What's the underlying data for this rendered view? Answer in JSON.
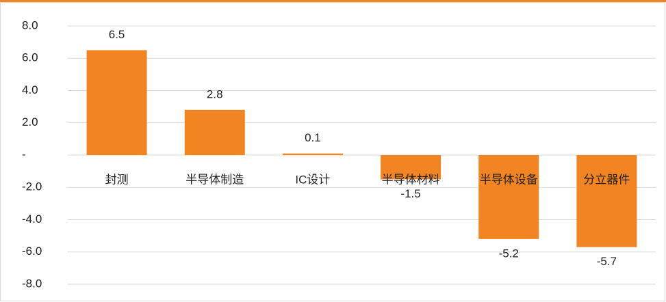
{
  "chart_data": {
    "type": "bar",
    "categories": [
      "封测",
      "半导体制造",
      "IC设计",
      "半导体材料",
      "半导体设备",
      "分立器件"
    ],
    "values": [
      6.5,
      2.8,
      0.1,
      -1.5,
      -5.2,
      -5.7
    ],
    "color": "#f28522",
    "ylim": [
      -8,
      8
    ],
    "yticks": [
      {
        "value": -8,
        "label": "-8.0"
      },
      {
        "value": -6,
        "label": "-6.0"
      },
      {
        "value": -4,
        "label": "-4.0"
      },
      {
        "value": -2,
        "label": "-2.0"
      },
      {
        "value": 0,
        "label": "-"
      },
      {
        "value": 2,
        "label": "2.0"
      },
      {
        "value": 4,
        "label": "4.0"
      },
      {
        "value": 6,
        "label": "6.0"
      },
      {
        "value": 8,
        "label": "8.0"
      }
    ],
    "grid": true
  }
}
